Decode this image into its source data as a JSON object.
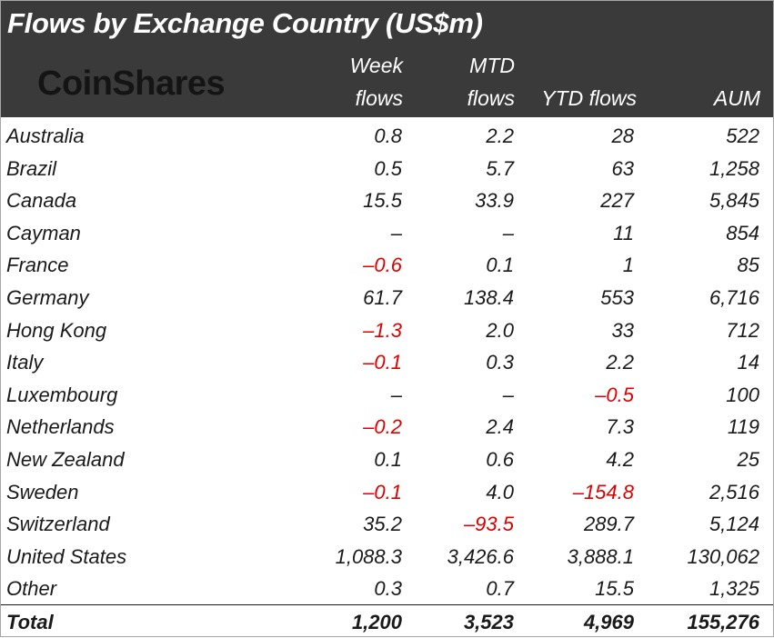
{
  "title": "Flows by Exchange Country (US$m)",
  "logo": "CoinShares",
  "columns": [
    {
      "line1": "Week",
      "line2": "flows"
    },
    {
      "line1": "MTD",
      "line2": "flows"
    },
    {
      "line1": "",
      "line2": "YTD flows"
    },
    {
      "line1": "",
      "line2": "AUM"
    }
  ],
  "rows": [
    {
      "country": "Australia",
      "week": "0.8",
      "mtd": "2.2",
      "ytd": "28",
      "aum": "522"
    },
    {
      "country": "Brazil",
      "week": "0.5",
      "mtd": "5.7",
      "ytd": "63",
      "aum": "1,258"
    },
    {
      "country": "Canada",
      "week": "15.5",
      "mtd": "33.9",
      "ytd": "227",
      "aum": "5,845"
    },
    {
      "country": "Cayman",
      "week": "-",
      "mtd": "-",
      "ytd": "11",
      "aum": "854"
    },
    {
      "country": "France",
      "week": "-0.6",
      "mtd": "0.1",
      "ytd": "1",
      "aum": "85"
    },
    {
      "country": "Germany",
      "week": "61.7",
      "mtd": "138.4",
      "ytd": "553",
      "aum": "6,716"
    },
    {
      "country": "Hong Kong",
      "week": "-1.3",
      "mtd": "2.0",
      "ytd": "33",
      "aum": "712"
    },
    {
      "country": "Italy",
      "week": "-0.1",
      "mtd": "0.3",
      "ytd": "2.2",
      "aum": "14"
    },
    {
      "country": "Luxembourg",
      "week": "-",
      "mtd": "-",
      "ytd": "-0.5",
      "aum": "100"
    },
    {
      "country": "Netherlands",
      "week": "-0.2",
      "mtd": "2.4",
      "ytd": "7.3",
      "aum": "119"
    },
    {
      "country": "New Zealand",
      "week": "0.1",
      "mtd": "0.6",
      "ytd": "4.2",
      "aum": "25"
    },
    {
      "country": "Sweden",
      "week": "-0.1",
      "mtd": "4.0",
      "ytd": "-154.8",
      "aum": "2,516"
    },
    {
      "country": "Switzerland",
      "week": "35.2",
      "mtd": "-93.5",
      "ytd": "289.7",
      "aum": "5,124"
    },
    {
      "country": "United States",
      "week": "1,088.3",
      "mtd": "3,426.6",
      "ytd": "3,888.1",
      "aum": "130,062"
    },
    {
      "country": "Other",
      "week": "0.3",
      "mtd": "0.7",
      "ytd": "15.5",
      "aum": "1,325"
    }
  ],
  "total": {
    "country": "Total",
    "week": "1,200",
    "mtd": "3,523",
    "ytd": "4,969",
    "aum": "155,276"
  },
  "colors": {
    "header_bg": "#3a3a3a",
    "negative": "#e00000",
    "text": "#1a1a1a"
  }
}
